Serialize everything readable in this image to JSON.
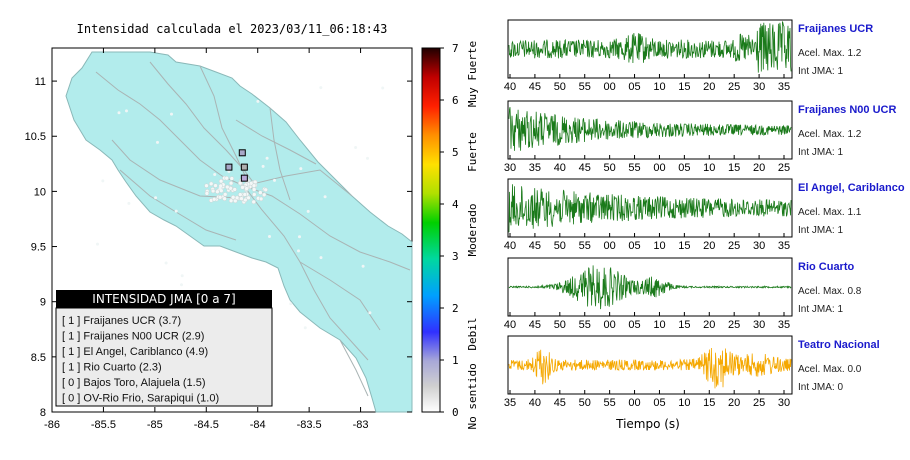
{
  "map": {
    "title": "Intensidad calculada el 2023/03/11_06:18:43",
    "x_ticks": [
      "-86",
      "-85.5",
      "-85",
      "-84.5",
      "-84",
      "-83.5",
      "-83"
    ],
    "y_ticks": [
      "11",
      "10.5",
      "10",
      "9.5",
      "9",
      "8.5",
      "8"
    ],
    "xlim": [
      -86,
      -82.5
    ],
    "ylim": [
      8,
      11.3
    ],
    "land_color": "#b2ecec",
    "station_markers": [
      {
        "lon": -84.15,
        "lat": 10.35,
        "color": "#a8a8c8"
      },
      {
        "lon": -84.28,
        "lat": 10.22,
        "color": "#a8a8c8"
      },
      {
        "lon": -84.13,
        "lat": 10.22,
        "color": "#b0b0b0"
      },
      {
        "lon": -84.13,
        "lat": 10.12,
        "color": "#b8a8d8"
      }
    ]
  },
  "legend": {
    "title": "INTENSIDAD JMA [0 a 7]",
    "rows": [
      "[ 1 ]  Fraijanes UCR (3.7)",
      "[ 1 ]  Fraijanes N00 UCR (2.9)",
      "[ 1 ]  El Angel, Cariblanco (4.9)",
      "[ 1 ]  Rio Cuarto (2.3)",
      "[ 0 ]  Bajos Toro, Alajuela (1.5)",
      "[ 0 ]  OV-Rio Frio, Sarapiqui (1.0)"
    ]
  },
  "colorbar": {
    "ticks": [
      "7",
      "6",
      "5",
      "4",
      "3",
      "2",
      "1",
      "0"
    ],
    "labels": [
      "Muy Fuerte",
      "Fuerte",
      "Moderado",
      "Debil",
      "No sentido"
    ],
    "range": [
      0,
      7
    ]
  },
  "traces": {
    "xlabel": "Tiempo (s)",
    "stations": [
      {
        "name": "Fraijanes UCR",
        "acel": "Acel. Max. 1.2",
        "jma": "Int JMA: 1",
        "color": "#1a7a1a",
        "ticks": [
          "40",
          "45",
          "50",
          "55",
          "00",
          "05",
          "10",
          "15",
          "20",
          "25",
          "30",
          "35"
        ],
        "shape": "late"
      },
      {
        "name": "Fraijanes N00 UCR",
        "acel": "Acel. Max. 1.2",
        "jma": "Int JMA: 1",
        "color": "#1a7a1a",
        "ticks": [
          "30",
          "35",
          "40",
          "45",
          "50",
          "55",
          "00",
          "05",
          "10",
          "15",
          "20",
          "25"
        ],
        "shape": "decay"
      },
      {
        "name": "El Angel, Cariblanco",
        "acel": "Acel. Max. 1.1",
        "jma": "Int JMA: 1",
        "color": "#1a7a1a",
        "ticks": [
          "40",
          "45",
          "50",
          "55",
          "00",
          "05",
          "10",
          "15",
          "20",
          "25",
          "30",
          "35"
        ],
        "shape": "decay2"
      },
      {
        "name": "Rio Cuarto",
        "acel": "Acel. Max. 0.8",
        "jma": "Int JMA: 1",
        "color": "#1a7a1a",
        "ticks": [
          "40",
          "45",
          "50",
          "55",
          "00",
          "05",
          "10",
          "15",
          "20",
          "25",
          "30",
          "35"
        ],
        "shape": "burst"
      },
      {
        "name": "Teatro Nacional",
        "acel": "Acel. Max. 0.0",
        "jma": "Int JMA: 0",
        "color": "#f5a800",
        "ticks": [
          "35",
          "40",
          "45",
          "50",
          "55",
          "00",
          "05",
          "10",
          "15",
          "20",
          "25",
          "30"
        ],
        "shape": "orange"
      }
    ]
  }
}
